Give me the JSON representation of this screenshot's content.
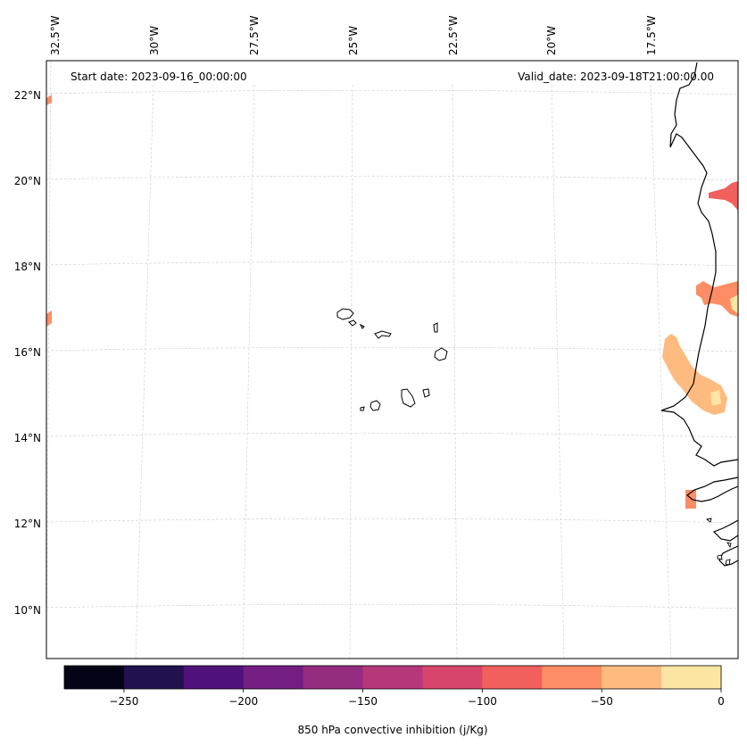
{
  "header": {
    "start_date": "Start date: 2023-09-16_00:00:00",
    "valid_date": "Valid_date: 2023-09-18T21:00:00.00"
  },
  "longitude_labels": [
    "32.5°W",
    "30°W",
    "27.5°W",
    "25°W",
    "22.5°W",
    "20°W",
    "17.5°W"
  ],
  "latitude_labels": [
    "22°N",
    "20°N",
    "18°N",
    "16°N",
    "14°N",
    "12°N",
    "10°N"
  ],
  "colorbar": {
    "label": "850 hPa convective inhibition (j/Kg)",
    "tick_labels": [
      "−250",
      "−200",
      "−150",
      "−100",
      "−50",
      "0"
    ],
    "range": [
      -275,
      0
    ],
    "bin_step": 25,
    "colors": [
      "#050417",
      "#21114e",
      "#4f127b",
      "#741d82",
      "#942c80",
      "#b6377a",
      "#d8456c",
      "#f1605d",
      "#fd8d64",
      "#febb80",
      "#fde5a4"
    ]
  },
  "fill_colors": {
    "minus_100_to_75": "#f1605d",
    "minus_75_to_50": "#fd8d64",
    "minus_50_to_25": "#febb80",
    "minus_25_to_0": "#fde5a4"
  }
}
